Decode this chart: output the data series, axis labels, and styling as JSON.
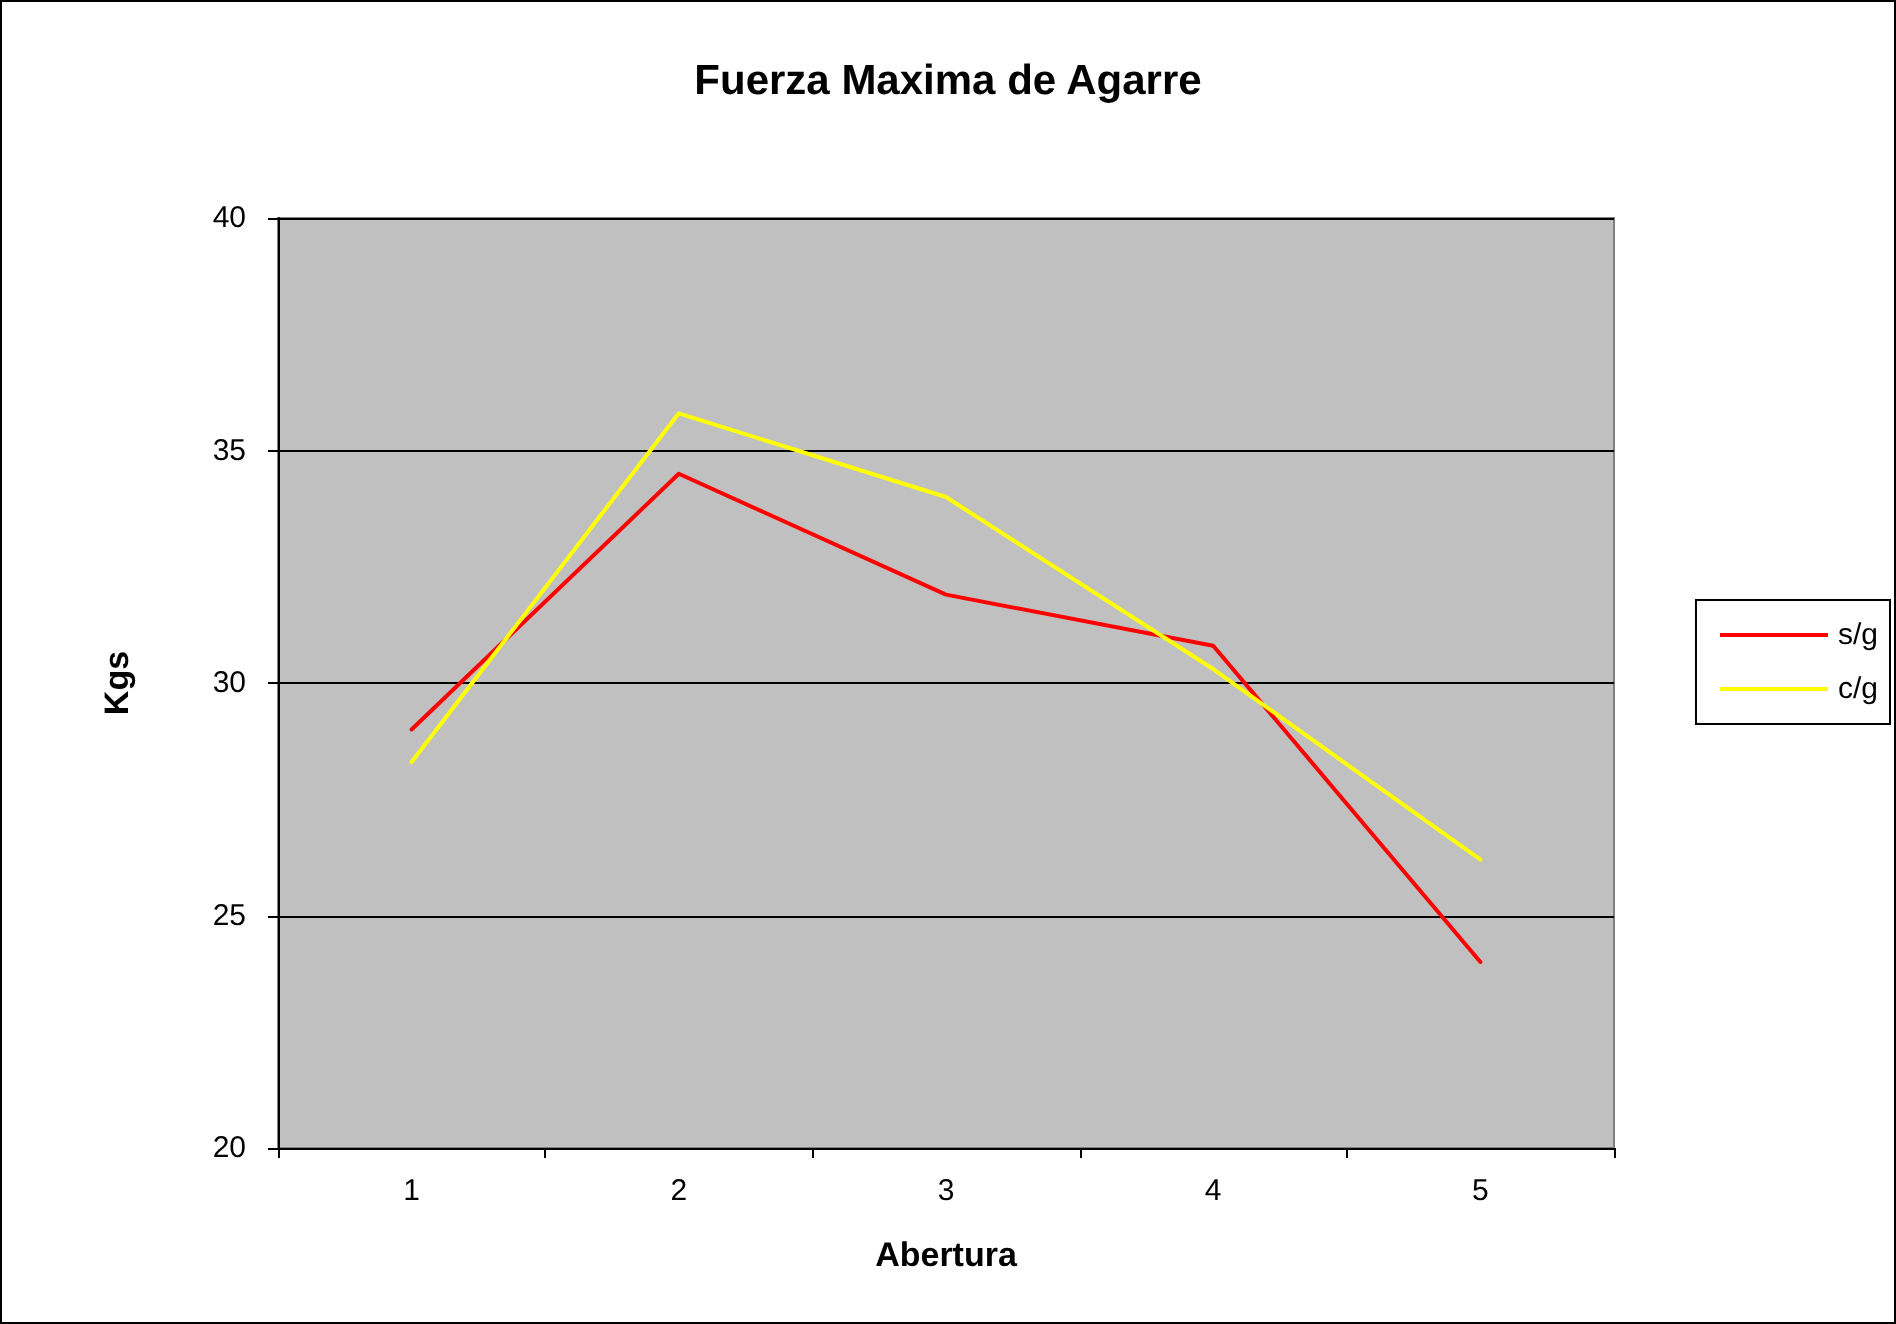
{
  "chart_data": {
    "type": "line",
    "title": "Fuerza Maxima de Agarre",
    "xlabel": "Abertura",
    "ylabel": "Kgs",
    "categories": [
      "1",
      "2",
      "3",
      "4",
      "5"
    ],
    "series": [
      {
        "name": "s/g",
        "color": "#ff0000",
        "values": [
          29.0,
          34.5,
          31.9,
          30.8,
          24.0
        ]
      },
      {
        "name": "c/g",
        "color": "#ffff00",
        "values": [
          28.3,
          35.8,
          34.0,
          30.3,
          26.2
        ]
      }
    ],
    "ylim": [
      20,
      40
    ],
    "yticks": [
      20,
      25,
      30,
      35,
      40
    ],
    "grid": "y",
    "legend": "right",
    "marker": "none",
    "line_style": "solid"
  }
}
